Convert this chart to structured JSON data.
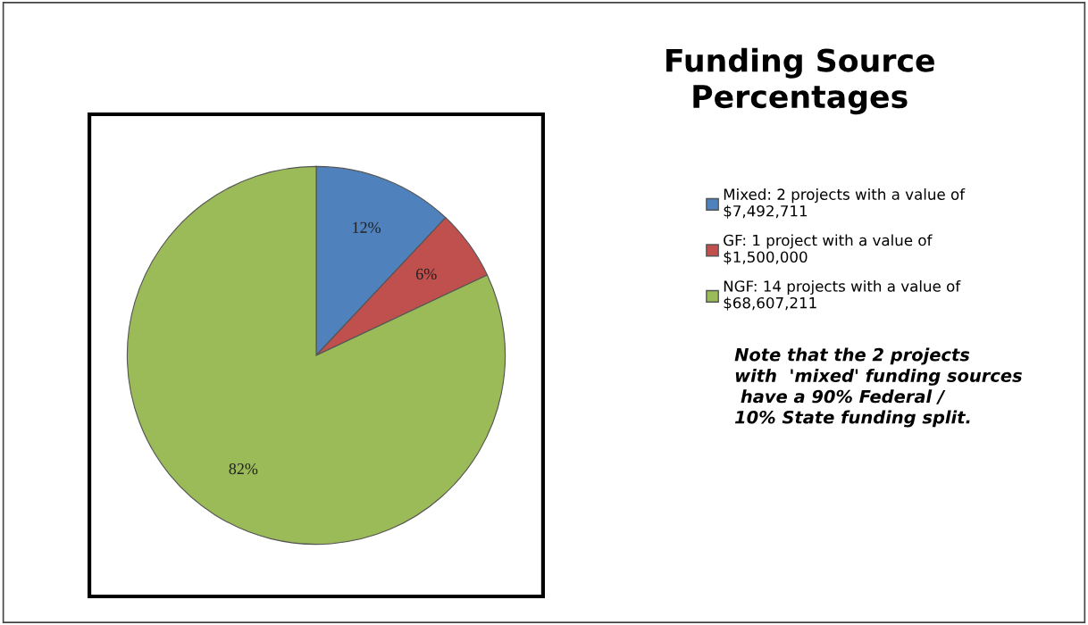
{
  "chart_data": {
    "type": "pie",
    "title": "Funding Source\nPercentages",
    "categories": [
      "Mixed: 2 projects with a value of\n$7,492,711",
      "GF: 1 project with a value of\n$1,500,000",
      "NGF: 14 projects with a value of\n$68,607,211"
    ],
    "values": [
      12,
      6,
      82
    ],
    "value_labels": [
      "12%",
      "6%",
      "82%"
    ],
    "colors": [
      "#4f81bd",
      "#c0504d",
      "#9bbb59"
    ],
    "legend": "right",
    "annotations": [
      "Note that the 2 projects\nwith  'mixed' funding sources\n have a 90% Federal /\n10% State funding split."
    ]
  }
}
